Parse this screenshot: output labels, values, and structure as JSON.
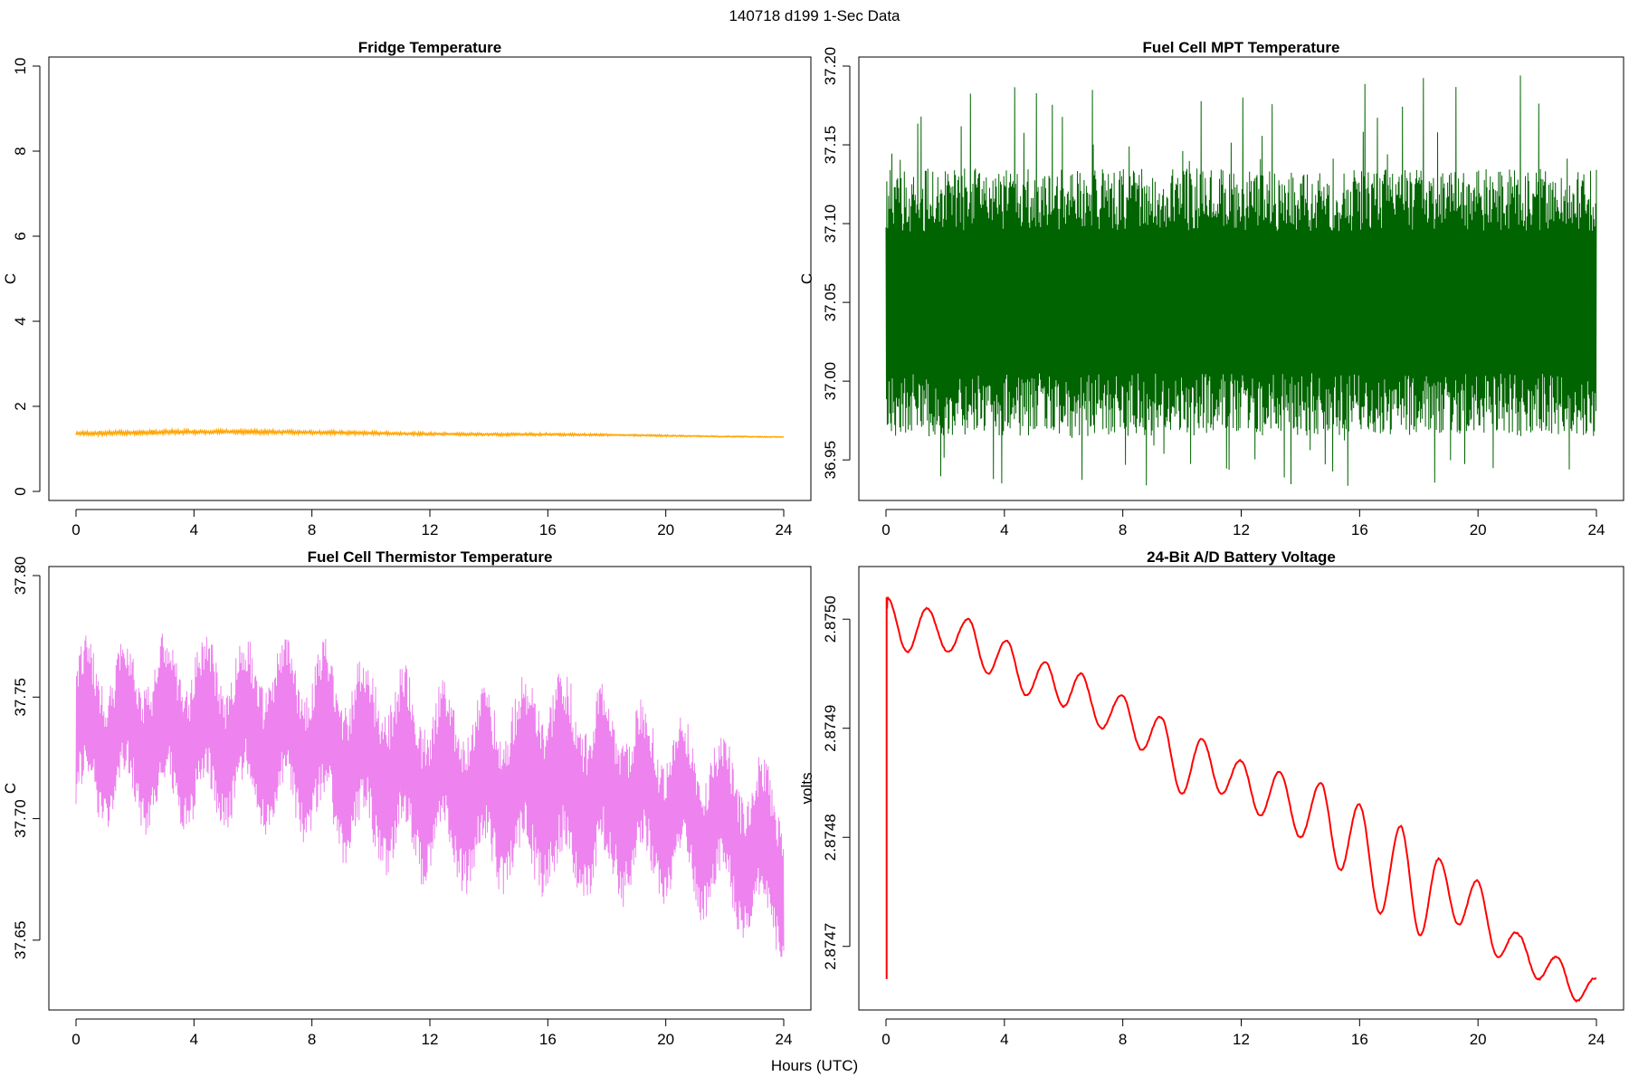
{
  "figure": {
    "title": "140718   d199   1-Sec Data",
    "xlabel": "Hours (UTC)"
  },
  "chart_data": [
    {
      "type": "line",
      "title": "Fridge Temperature",
      "xlabel": "",
      "ylabel": "C",
      "color": "#ffa500",
      "xlim": [
        0,
        24
      ],
      "ylim": [
        0,
        10
      ],
      "xticks": [
        "0",
        "4",
        "8",
        "12",
        "16",
        "20",
        "24"
      ],
      "yticks": [
        "0",
        "2",
        "4",
        "6",
        "8",
        "10"
      ],
      "series": [
        {
          "x": [
            0,
            2,
            4,
            6,
            8,
            10,
            12,
            14,
            16,
            18,
            20,
            22,
            24
          ],
          "y": [
            1.36,
            1.38,
            1.4,
            1.4,
            1.39,
            1.37,
            1.35,
            1.34,
            1.34,
            1.33,
            1.31,
            1.29,
            1.28
          ],
          "amplitude": [
            0.11,
            0.12,
            0.12,
            0.11,
            0.1,
            0.09,
            0.08,
            0.07,
            0.07,
            0.05,
            0.04,
            0.03,
            0.02
          ]
        }
      ]
    },
    {
      "type": "line",
      "title": "Fuel Cell MPT Temperature",
      "xlabel": "",
      "ylabel": "C",
      "color": "#006400",
      "xlim": [
        0,
        24
      ],
      "ylim": [
        36.93,
        37.2
      ],
      "xticks": [
        "0",
        "4",
        "8",
        "12",
        "16",
        "20",
        "24"
      ],
      "yticks": [
        "36.95",
        "37.00",
        "37.05",
        "37.10",
        "37.15",
        "37.20"
      ],
      "series": [
        {
          "x": [
            0,
            4,
            8,
            12,
            16,
            20,
            24
          ],
          "y": [
            37.045,
            37.045,
            37.045,
            37.045,
            37.045,
            37.045,
            37.045
          ],
          "core_range": [
            36.995,
            37.105
          ],
          "extreme_range": [
            36.933,
            37.195
          ]
        }
      ]
    },
    {
      "type": "line",
      "title": "Fuel Cell Thermistor Temperature",
      "xlabel": "",
      "ylabel": "C",
      "color": "#ee82ee",
      "xlim": [
        0,
        24
      ],
      "ylim": [
        37.625,
        37.8
      ],
      "xticks": [
        "0",
        "4",
        "8",
        "12",
        "16",
        "20",
        "24"
      ],
      "yticks": [
        "37.65",
        "37.70",
        "37.75",
        "37.80"
      ],
      "series": [
        {
          "x": [
            0,
            2,
            4,
            6,
            8,
            10,
            12,
            14,
            16,
            18,
            20,
            22,
            24
          ],
          "y": [
            37.735,
            37.735,
            37.735,
            37.735,
            37.732,
            37.722,
            37.715,
            37.712,
            37.715,
            37.71,
            37.705,
            37.695,
            37.68
          ],
          "amplitude": [
            0.03,
            0.03,
            0.032,
            0.03,
            0.032,
            0.035,
            0.033,
            0.033,
            0.04,
            0.035,
            0.03,
            0.03,
            0.03
          ],
          "period_hours": 1.35
        }
      ]
    },
    {
      "type": "line",
      "title": "24-Bit A/D Battery Voltage",
      "xlabel": "",
      "ylabel": "volts",
      "color": "#ff0000",
      "xlim": [
        0,
        24
      ],
      "ylim": [
        2.87465,
        2.87504
      ],
      "xticks": [
        "0",
        "4",
        "8",
        "12",
        "16",
        "20",
        "24"
      ],
      "yticks": [
        "2.8747",
        "2.8748",
        "2.8749",
        "2.8750"
      ],
      "series": [
        {
          "x": [
            0.02,
            0.05,
            1.4,
            2.8,
            4.1,
            5.4,
            6.6,
            8.0,
            9.3,
            10.7,
            12.0,
            13.3,
            14.7,
            16.0,
            17.4,
            18.7,
            20.0,
            21.4,
            22.7,
            24.0
          ],
          "peaks": [
            2.87502,
            2.87502,
            2.87501,
            2.875,
            2.87498,
            2.87496,
            2.87495,
            2.87493,
            2.87491,
            2.87489,
            2.87487,
            2.87486,
            2.87485,
            2.87483,
            2.87481,
            2.87478,
            2.87476,
            2.87471,
            2.87469,
            2.87467
          ],
          "troughs": [
            2.87467,
            2.87501,
            2.87497,
            2.87497,
            2.87495,
            2.87493,
            2.87492,
            2.8749,
            2.87488,
            2.87484,
            2.87484,
            2.87482,
            2.8748,
            2.87477,
            2.87473,
            2.87471,
            2.87472,
            2.87469,
            2.87467,
            2.87465
          ]
        }
      ]
    }
  ]
}
